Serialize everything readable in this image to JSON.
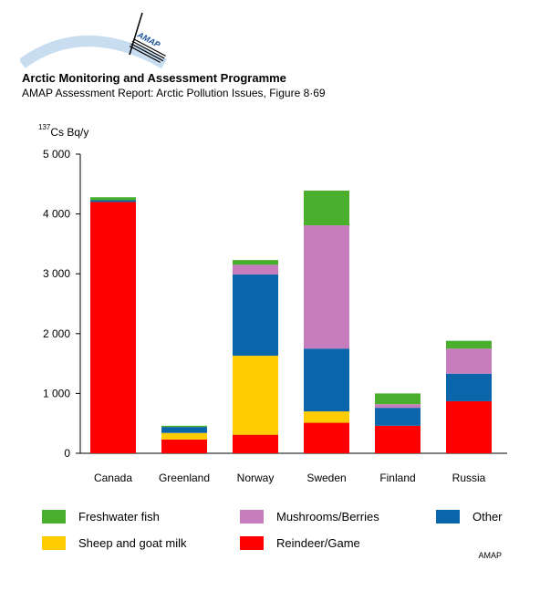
{
  "header": {
    "organization": "Arctic Monitoring and Assessment Programme",
    "subtitle": "AMAP Assessment Report: Arctic Pollution Issues, Figure 8·69",
    "logo_text": "AMAP"
  },
  "colors": {
    "freshwater_fish": "#4aaf2c",
    "sheep_goat_milk": "#fecc00",
    "mushrooms_berries": "#c77cbe",
    "other": "#0a65ab",
    "reindeer_game": "#fe0000"
  },
  "chart_data": {
    "type": "bar",
    "stacked": true,
    "ylabel_sup": "137",
    "ylabel": "Cs Bq/y",
    "ylim": [
      0,
      5000
    ],
    "yticks": [
      0,
      1000,
      2000,
      3000,
      4000,
      5000
    ],
    "ytick_labels": [
      "0",
      "1 000",
      "2 000",
      "3 000",
      "4 000",
      "5 000"
    ],
    "categories": [
      "Canada",
      "Greenland",
      "Norway",
      "Sweden",
      "Finland",
      "Russia"
    ],
    "series": [
      {
        "name": "Reindeer/Game",
        "color": "#fe0000",
        "values": [
          4200,
          230,
          310,
          510,
          460,
          870
        ]
      },
      {
        "name": "Sheep and goat milk",
        "color": "#fecc00",
        "values": [
          0,
          110,
          1320,
          190,
          0,
          0
        ]
      },
      {
        "name": "Other",
        "color": "#0a65ab",
        "values": [
          30,
          100,
          1360,
          1050,
          300,
          460
        ]
      },
      {
        "name": "Mushrooms/Berries",
        "color": "#c77cbe",
        "values": [
          0,
          0,
          160,
          2060,
          60,
          420
        ]
      },
      {
        "name": "Freshwater fish",
        "color": "#4aaf2c",
        "values": [
          50,
          20,
          80,
          580,
          180,
          130
        ]
      }
    ],
    "legend": [
      {
        "label": "Freshwater fish",
        "color": "#4aaf2c"
      },
      {
        "label": "Mushrooms/Berries",
        "color": "#c77cbe"
      },
      {
        "label": "Other",
        "color": "#0a65ab"
      },
      {
        "label": "Sheep and goat milk",
        "color": "#fecc00"
      },
      {
        "label": "Reindeer/Game",
        "color": "#fe0000"
      }
    ]
  },
  "footer": {
    "credit": "AMAP"
  }
}
